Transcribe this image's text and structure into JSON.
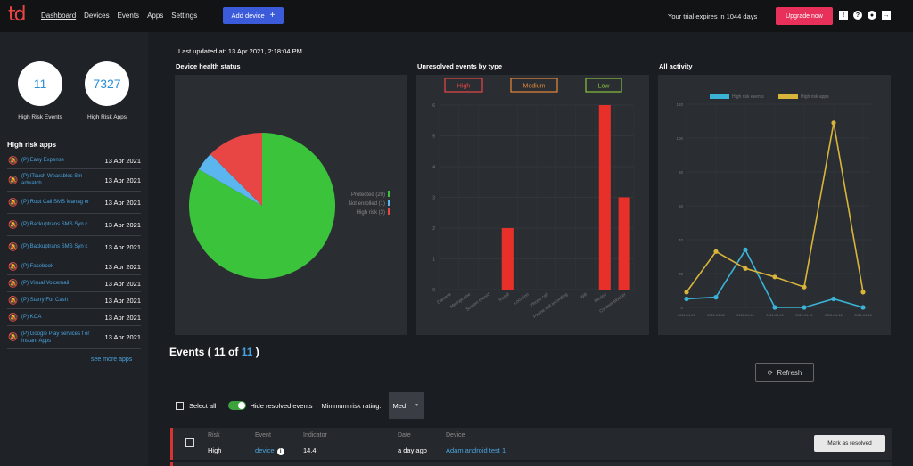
{
  "nav": {
    "logo": "td",
    "items": [
      "Dashboard",
      "Devices",
      "Events",
      "Apps",
      "Settings"
    ],
    "add_device": "Add device",
    "add_icon": "+",
    "trial": "Your trial expires in 1044 days",
    "upgrade": "Upgrade now",
    "icons": [
      "message-icon",
      "help-icon",
      "user-icon",
      "logout-icon"
    ]
  },
  "stats": {
    "high_risk_events": "11",
    "high_risk_events_label": "High Risk Events",
    "high_risk_apps": "7327",
    "high_risk_apps_label": "High Risk Apps"
  },
  "high_risk_apps": {
    "title": "High risk apps",
    "items": [
      {
        "name": "(P) Easy Expense",
        "date": "13 Apr 2021"
      },
      {
        "name": "(P) ITouch Wearables Sm artwatch",
        "date": "13 Apr 2021"
      },
      {
        "name": "(P) Root Call SMS Manag er",
        "date": "13 Apr 2021"
      },
      {
        "name": "(P) Backuptrans SMS Syn c",
        "date": "13 Apr 2021"
      },
      {
        "name": "(P) Backuptrans SMS Syn c",
        "date": "13 Apr 2021"
      },
      {
        "name": "(P) Facebook",
        "date": "13 Apr 2021"
      },
      {
        "name": "(P) Visual Voicemail",
        "date": "13 Apr 2021"
      },
      {
        "name": "(P) Starry For Cash",
        "date": "13 Apr 2021"
      },
      {
        "name": "(P) KOA",
        "date": "13 Apr 2021"
      },
      {
        "name": "(P) Google Play services f or Instant Apps",
        "date": "13 Apr 2021"
      }
    ],
    "see_more": "see more apps"
  },
  "last_updated": "Last updated at: 13 Apr 2021, 2:18:04 PM",
  "panels": {
    "health": "Device health status",
    "unresolved": "Unresolved events by type",
    "activity": "All activity"
  },
  "chart_data": [
    {
      "type": "pie",
      "title": "Device health status",
      "slices": [
        {
          "label": "Protected (20)",
          "value": 20,
          "color": "#3cc33c"
        },
        {
          "label": "Not enrolled (1)",
          "value": 1,
          "color": "#5bb5ef"
        },
        {
          "label": "High risk (3)",
          "value": 3,
          "color": "#e84545"
        }
      ],
      "legend": "right"
    },
    {
      "type": "bar",
      "title": "Unresolved events by type",
      "filters": [
        {
          "label": "High",
          "color": "#e84545"
        },
        {
          "label": "Medium",
          "color": "#e8893a"
        },
        {
          "label": "Low",
          "color": "#8ac23c"
        }
      ],
      "categories": [
        "Camera",
        "Microphone",
        "Screen record",
        "Install",
        "Location",
        "Phone call",
        "Phone call recording",
        "Wifi",
        "Device",
        "Content blocker"
      ],
      "values": [
        0,
        0,
        0,
        2,
        0,
        0,
        0,
        0,
        6,
        3
      ],
      "ylim": [
        0,
        6
      ],
      "yticks": [
        0,
        1,
        2,
        3,
        4,
        5,
        6
      ],
      "color": "#e8302a"
    },
    {
      "type": "line",
      "title": "All activity",
      "x": [
        "2021-04-07",
        "2021-04-08",
        "2021-04-09",
        "2021-04-10",
        "2021-04-11",
        "2021-04-12",
        "2021-04-13"
      ],
      "series": [
        {
          "name": "High risk events",
          "color": "#3bb3d6",
          "values": [
            5,
            6,
            34,
            0,
            0,
            5,
            0
          ]
        },
        {
          "name": "High risk apps",
          "color": "#d8b43a",
          "values": [
            9,
            33,
            23,
            18,
            12,
            109,
            9
          ]
        }
      ],
      "ylim": [
        0,
        120
      ],
      "yticks": [
        0,
        20,
        40,
        60,
        80,
        100,
        120
      ],
      "legend": "top"
    }
  ],
  "events": {
    "title_prefix": "Events ( ",
    "count": "11",
    "of": " of ",
    "total": "11",
    "title_suffix": " )",
    "refresh": "Refresh",
    "select_all": "Select all",
    "hide_resolved": "Hide resolved events",
    "sep": "|",
    "min_risk": "Minimum risk rating:",
    "min_risk_value": "Med",
    "columns": {
      "risk": "Risk",
      "event": "Event",
      "indicator": "Indicator",
      "date": "Date",
      "device": "Device"
    },
    "rows": [
      {
        "risk": "High",
        "event": "device",
        "indicator": "14.4",
        "date": "a day ago",
        "device": "Adam android test 1",
        "action": "Mark as resolved"
      }
    ]
  }
}
